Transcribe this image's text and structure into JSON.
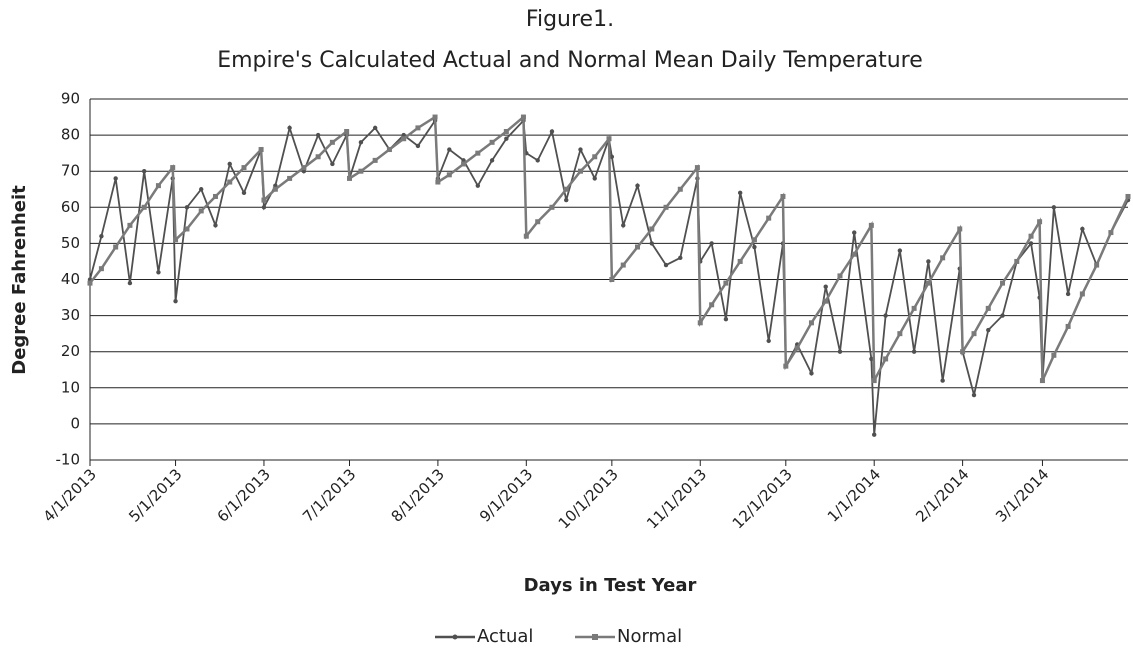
{
  "chart_data": {
    "type": "line",
    "title": "Figure1.",
    "subtitle": "Empire's Calculated Actual and Normal Mean Daily Temperature",
    "x_label": "Days in Test Year",
    "y_label": "Degree Fahrenheit",
    "x": [
      "2013-04-01",
      "2013-04-05",
      "2013-04-10",
      "2013-04-15",
      "2013-04-20",
      "2013-04-25",
      "2013-04-30",
      "2013-05-01",
      "2013-05-05",
      "2013-05-10",
      "2013-05-15",
      "2013-05-20",
      "2013-05-25",
      "2013-05-31",
      "2013-06-01",
      "2013-06-05",
      "2013-06-10",
      "2013-06-15",
      "2013-06-20",
      "2013-06-25",
      "2013-06-30",
      "2013-07-01",
      "2013-07-05",
      "2013-07-10",
      "2013-07-15",
      "2013-07-20",
      "2013-07-25",
      "2013-07-31",
      "2013-08-01",
      "2013-08-05",
      "2013-08-10",
      "2013-08-15",
      "2013-08-20",
      "2013-08-25",
      "2013-08-31",
      "2013-09-01",
      "2013-09-05",
      "2013-09-10",
      "2013-09-15",
      "2013-09-20",
      "2013-09-25",
      "2013-09-30",
      "2013-10-01",
      "2013-10-05",
      "2013-10-10",
      "2013-10-15",
      "2013-10-20",
      "2013-10-25",
      "2013-10-31",
      "2013-11-01",
      "2013-11-05",
      "2013-11-10",
      "2013-11-15",
      "2013-11-20",
      "2013-11-25",
      "2013-11-30",
      "2013-12-01",
      "2013-12-05",
      "2013-12-10",
      "2013-12-15",
      "2013-12-20",
      "2013-12-25",
      "2013-12-31",
      "2014-01-01",
      "2014-01-05",
      "2014-01-10",
      "2014-01-15",
      "2014-01-20",
      "2014-01-25",
      "2014-01-31",
      "2014-02-01",
      "2014-02-05",
      "2014-02-10",
      "2014-02-15",
      "2014-02-20",
      "2014-02-25",
      "2014-02-28",
      "2014-03-01",
      "2014-03-05",
      "2014-03-10",
      "2014-03-15",
      "2014-03-20",
      "2014-03-25",
      "2014-03-31"
    ],
    "series": [
      {
        "name": "Actual",
        "color": "#505050",
        "marker": "circle",
        "values": [
          40,
          52,
          68,
          39,
          70,
          42,
          68,
          34,
          60,
          65,
          55,
          72,
          64,
          76,
          60,
          66,
          82,
          70,
          80,
          72,
          80,
          68,
          78,
          82,
          76,
          80,
          77,
          84,
          68,
          76,
          73,
          66,
          73,
          79,
          84,
          75,
          73,
          81,
          62,
          76,
          68,
          79,
          74,
          55,
          66,
          50,
          44,
          46,
          68,
          45,
          50,
          29,
          64,
          49,
          23,
          50,
          16,
          22,
          14,
          38,
          20,
          53,
          18,
          -3,
          30,
          48,
          20,
          45,
          12,
          43,
          20,
          8,
          26,
          30,
          45,
          50,
          35,
          12,
          60,
          36,
          54,
          44,
          53,
          62
        ]
      },
      {
        "name": "Normal",
        "color": "#7a7a7a",
        "marker": "square",
        "values": [
          39,
          43,
          49,
          55,
          60,
          66,
          71,
          51,
          54,
          59,
          63,
          67,
          71,
          76,
          62,
          65,
          68,
          71,
          74,
          78,
          81,
          68,
          70,
          73,
          76,
          79,
          82,
          85,
          67,
          69,
          72,
          75,
          78,
          81,
          85,
          52,
          56,
          60,
          65,
          70,
          74,
          79,
          40,
          44,
          49,
          54,
          60,
          65,
          71,
          28,
          33,
          39,
          45,
          51,
          57,
          63,
          16,
          21,
          28,
          34,
          41,
          47,
          55,
          12,
          18,
          25,
          32,
          39,
          46,
          54,
          20,
          25,
          32,
          39,
          45,
          52,
          56,
          12,
          19,
          27,
          36,
          44,
          53,
          63
        ]
      }
    ],
    "xlim": [
      "2013-04-01",
      "2014-03-31"
    ],
    "xticks": [
      {
        "value": "2013-04-01",
        "label": "4/1/2013"
      },
      {
        "value": "2013-05-01",
        "label": "5/1/2013"
      },
      {
        "value": "2013-06-01",
        "label": "6/1/2013"
      },
      {
        "value": "2013-07-01",
        "label": "7/1/2013"
      },
      {
        "value": "2013-08-01",
        "label": "8/1/2013"
      },
      {
        "value": "2013-09-01",
        "label": "9/1/2013"
      },
      {
        "value": "2013-10-01",
        "label": "10/1/2013"
      },
      {
        "value": "2013-11-01",
        "label": "11/1/2013"
      },
      {
        "value": "2013-12-01",
        "label": "12/1/2013"
      },
      {
        "value": "2014-01-01",
        "label": "1/1/2014"
      },
      {
        "value": "2014-02-01",
        "label": "2/1/2014"
      },
      {
        "value": "2014-03-01",
        "label": "3/1/2014"
      }
    ],
    "ylim": [
      -10,
      90
    ],
    "yticks": [
      -10,
      0,
      10,
      20,
      30,
      40,
      50,
      60,
      70,
      80,
      90
    ],
    "grid": true,
    "legend": "bottom"
  }
}
